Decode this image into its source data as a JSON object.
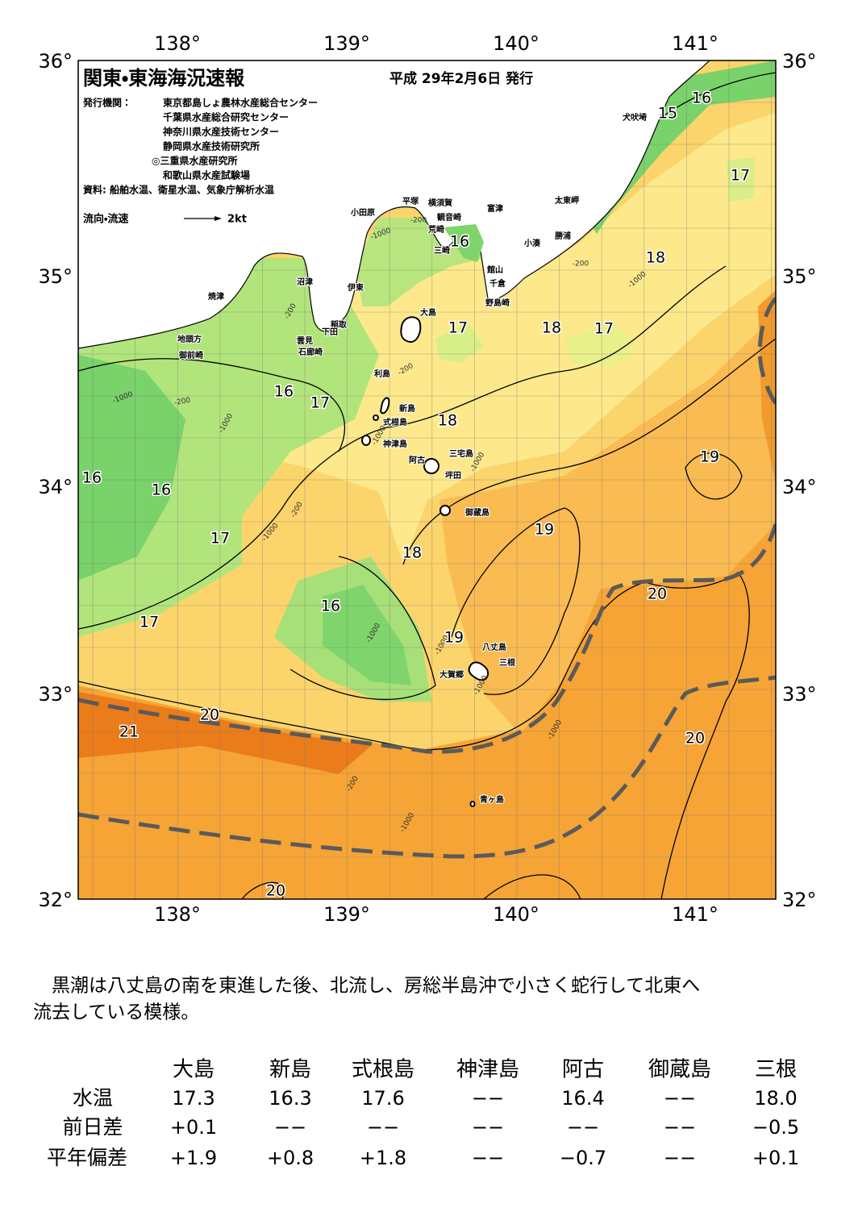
{
  "header": {
    "title": "関東・東海海況速報",
    "date": "平成 29年2月6日 発行",
    "issuer_label": "発行機関：",
    "issuers": [
      "東京都島しょ農林水産総合センター",
      "千葉県水産総合研究センター",
      "神奈川県水産技術センター",
      "静岡県水産技術研究所",
      "◎三重県水産研究所",
      "和歌山県水産試験場"
    ],
    "sources": "資料: 船舶水温、衛星水温、気象庁解析水温",
    "legend_label": "流向・流速",
    "legend_speed": "2kt"
  },
  "map": {
    "lon_labels": [
      "138°",
      "139°",
      "140°",
      "141°"
    ],
    "lat_labels": [
      "36°",
      "35°",
      "34°",
      "33°",
      "32°"
    ],
    "temperature_labels": [
      "15",
      "16",
      "17",
      "16",
      "18",
      "17",
      "18",
      "17",
      "16",
      "17",
      "18",
      "19",
      "16",
      "16",
      "17",
      "19",
      "18",
      "20",
      "16",
      "17",
      "19",
      "20",
      "21",
      "20",
      "20"
    ],
    "places": [
      "犬吠埼",
      "太東岬",
      "勝浦",
      "小湊",
      "富津",
      "館山",
      "千倉",
      "野島崎",
      "平塚",
      "横須賀",
      "観音崎",
      "荒崎",
      "三崎",
      "小田原",
      "沼津",
      "伊東",
      "焼津",
      "稲取",
      "下田",
      "雲見",
      "石廊崎",
      "地頭方",
      "御前崎",
      "大島",
      "利島",
      "新島",
      "式根島",
      "神津島",
      "三宅島",
      "阿古",
      "坪田",
      "御蔵島",
      "八丈島",
      "三根",
      "大賀郷",
      "青ヶ島"
    ],
    "depth_labels": [
      "-200",
      "-1000",
      "-200",
      "-1000",
      "-200",
      "-200",
      "-1000",
      "-200",
      "-1000",
      "-1000",
      "-200",
      "-1000",
      "-1000",
      "-1000",
      "-1000",
      "-200",
      "-1000",
      "-1000",
      "-1000"
    ]
  },
  "text": [
    "黒潮は八丈島の南を東進した後、北流し、房総半島沖で小さく蛇行して北東へ",
    "流去している模様。"
  ],
  "table": {
    "columns": [
      "大島",
      "新島",
      "式根島",
      "神津島",
      "阿古",
      "御蔵島",
      "三根"
    ],
    "rows": [
      {
        "label": "水温",
        "cells": [
          "17.3",
          "16.3",
          "17.6",
          "−−",
          "16.4",
          "−−",
          "18.0"
        ]
      },
      {
        "label": "前日差",
        "cells": [
          "+0.1",
          "−−",
          "−−",
          "−−",
          "−−",
          "−−",
          "−0.5"
        ]
      },
      {
        "label": "平年偏差",
        "cells": [
          "+1.9",
          "+0.8",
          "+1.8",
          "−−",
          "−0.7",
          "−−",
          "+0.1"
        ]
      }
    ]
  }
}
